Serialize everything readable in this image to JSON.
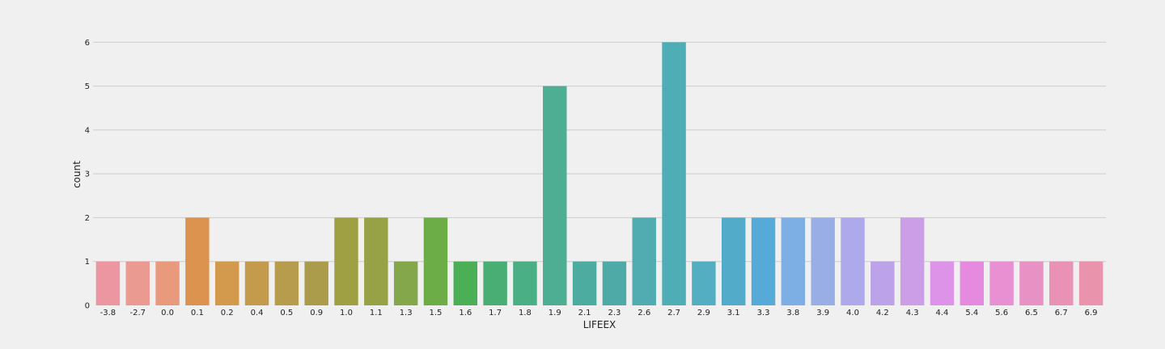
{
  "chart_data": {
    "type": "bar",
    "xlabel": "LIFEEX",
    "ylabel": "count",
    "ylim": [
      0,
      6.3
    ],
    "yticks": [
      0,
      1,
      2,
      3,
      4,
      5,
      6
    ],
    "grid": "horizontal",
    "categories": [
      "-3.8",
      "-2.7",
      "0.0",
      "0.1",
      "0.2",
      "0.4",
      "0.5",
      "0.9",
      "1.0",
      "1.1",
      "1.3",
      "1.5",
      "1.6",
      "1.7",
      "1.8",
      "1.9",
      "2.1",
      "2.3",
      "2.6",
      "2.7",
      "2.9",
      "3.1",
      "3.3",
      "3.8",
      "3.9",
      "4.0",
      "4.2",
      "4.3",
      "4.4",
      "5.4",
      "5.6",
      "6.5",
      "6.7",
      "6.9"
    ],
    "values": [
      1,
      1,
      1,
      2,
      1,
      1,
      1,
      1,
      2,
      2,
      1,
      2,
      1,
      1,
      1,
      5,
      1,
      1,
      2,
      6,
      1,
      2,
      2,
      2,
      2,
      2,
      1,
      2,
      1,
      1,
      1,
      1,
      1,
      1
    ],
    "colors": [
      "#eb96a0",
      "#eb9a92",
      "#e99a7c",
      "#dd9350",
      "#d39a4e",
      "#c49b4c",
      "#b69c4c",
      "#aa9c4a",
      "#9fa044",
      "#97a246",
      "#85a74b",
      "#6cad47",
      "#4aaf55",
      "#49ae74",
      "#4aaf85",
      "#4eae94",
      "#4daca0",
      "#4eaaa6",
      "#50acb0",
      "#4fadb5",
      "#53aec2",
      "#53abca",
      "#56aad8",
      "#7daee4",
      "#9aaee6",
      "#aea9ea",
      "#bca2e9",
      "#cb9ee7",
      "#dc93e8",
      "#e68ae0",
      "#e890d2",
      "#e891c5",
      "#ea92b5",
      "#e993ac"
    ]
  }
}
